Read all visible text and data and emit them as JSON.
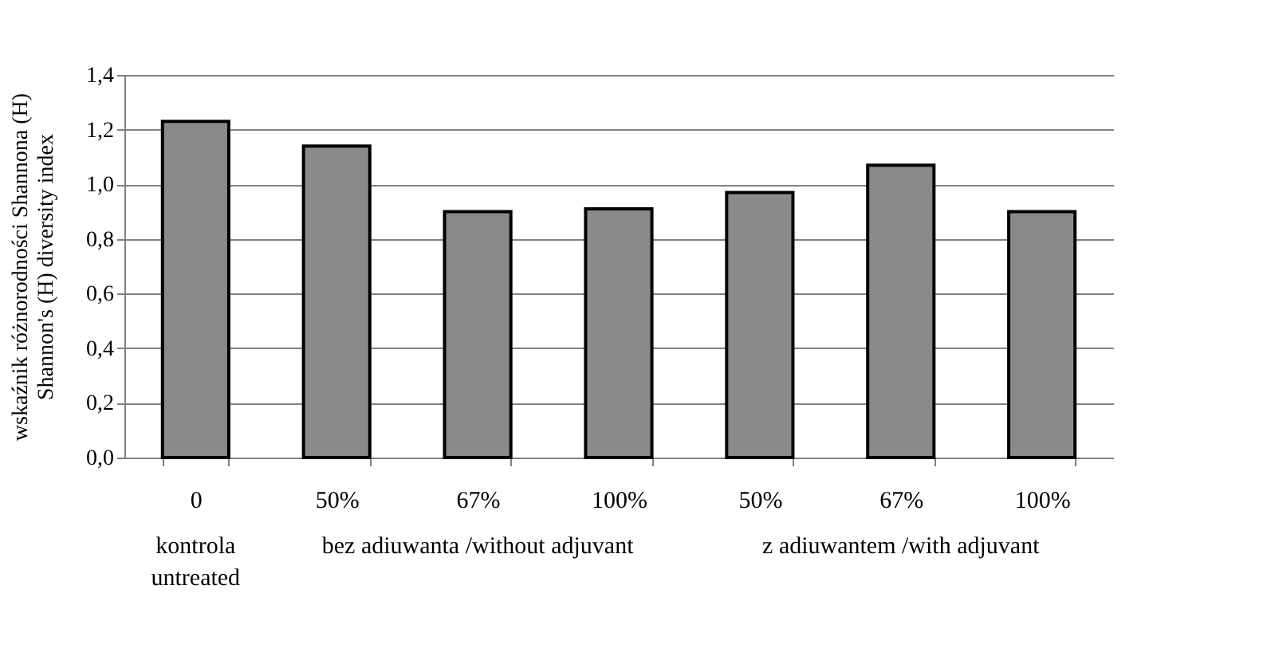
{
  "chart_data": {
    "type": "bar",
    "ylabel": "wskaźnik różnorodności Shannona (H)\nShannon's (H) diversity index",
    "categories": [
      "0",
      "50%",
      "67%",
      "100%",
      "50%",
      "67%",
      "100%"
    ],
    "values": [
      1.23,
      1.14,
      0.9,
      0.91,
      0.97,
      1.07,
      0.9
    ],
    "color": "#8a8a8a",
    "ylim": [
      0,
      1.4
    ],
    "yticks": [
      {
        "value": 0,
        "label": "0,0"
      },
      {
        "value": 0.2,
        "label": "0,2"
      },
      {
        "value": 0.4,
        "label": "0,4"
      },
      {
        "value": 0.6,
        "label": "0,6"
      },
      {
        "value": 0.8,
        "label": "0,8"
      },
      {
        "value": 1.0,
        "label": "1,0"
      },
      {
        "value": 1.2,
        "label": "1,2"
      },
      {
        "value": 1.4,
        "label": "1,4"
      }
    ],
    "grid": "y",
    "annotations": [
      "kontrola\nuntreated",
      "bez adiuwanta /without adjuvant",
      "z adiuwantem /with adjuvant"
    ]
  }
}
